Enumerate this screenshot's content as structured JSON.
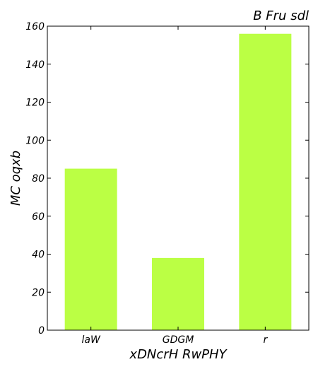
{
  "chart_data": {
    "type": "bar",
    "title": "B Fru sdl",
    "xlabel": "xDNcrH RwPHY",
    "ylabel": "MC  oqxb",
    "categories": [
      "laW",
      "GDGM",
      "r"
    ],
    "values": [
      85,
      38,
      156
    ],
    "ylim": [
      0,
      160
    ],
    "yticks": [
      0,
      20,
      40,
      60,
      80,
      100,
      120,
      140,
      160
    ],
    "bar_color": "#bbff44",
    "grid": false,
    "legend": null
  }
}
